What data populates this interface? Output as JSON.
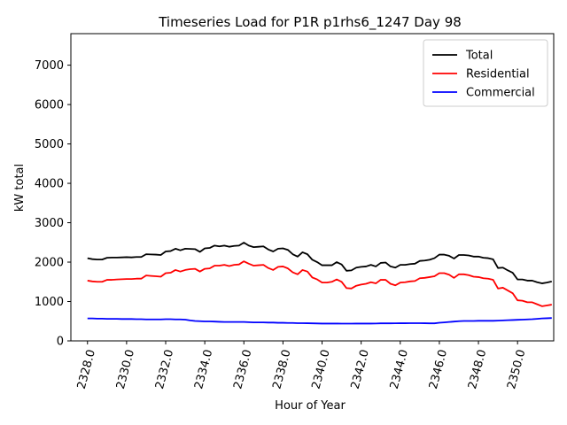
{
  "chart_data": {
    "type": "line",
    "title": "Timeseries Load for P1R p1rhs6_1247  Day 98",
    "xlabel": "Hour of Year",
    "ylabel": "kW total",
    "xlim": [
      2327.15,
      2351.85
    ],
    "ylim": [
      0,
      7800
    ],
    "x_ticks": [
      2328,
      2330,
      2332,
      2334,
      2336,
      2338,
      2340,
      2342,
      2344,
      2346,
      2348,
      2350
    ],
    "x_tick_labels": [
      "2328.0",
      "2330.0",
      "2332.0",
      "2334.0",
      "2336.0",
      "2338.0",
      "2340.0",
      "2342.0",
      "2344.0",
      "2346.0",
      "2348.0",
      "2350.0"
    ],
    "y_ticks": [
      0,
      1000,
      2000,
      3000,
      4000,
      5000,
      6000,
      7000
    ],
    "y_tick_labels": [
      "0",
      "1000",
      "2000",
      "3000",
      "4000",
      "5000",
      "6000",
      "7000"
    ],
    "legend_position": "top-right",
    "grid": false,
    "x_start": 2328,
    "x_step": 0.25,
    "series": [
      {
        "name": "Total",
        "color": "#000000",
        "values": [
          2100,
          2075,
          2065,
          2065,
          2110,
          2115,
          2115,
          2120,
          2125,
          2120,
          2130,
          2130,
          2200,
          2195,
          2190,
          2180,
          2270,
          2280,
          2340,
          2300,
          2340,
          2335,
          2330,
          2260,
          2350,
          2360,
          2420,
          2400,
          2420,
          2390,
          2410,
          2420,
          2495,
          2420,
          2380,
          2390,
          2400,
          2320,
          2270,
          2340,
          2350,
          2310,
          2200,
          2140,
          2250,
          2200,
          2060,
          2000,
          1920,
          1920,
          1920,
          2000,
          1940,
          1780,
          1790,
          1860,
          1880,
          1890,
          1930,
          1890,
          1980,
          1990,
          1890,
          1860,
          1930,
          1930,
          1950,
          1960,
          2030,
          2040,
          2060,
          2100,
          2190,
          2190,
          2160,
          2090,
          2180,
          2180,
          2170,
          2140,
          2140,
          2110,
          2100,
          2070,
          1850,
          1860,
          1790,
          1730,
          1560,
          1560,
          1530,
          1530,
          1490,
          1460,
          1480,
          1510
        ]
      },
      {
        "name": "Residential",
        "color": "#ff0000",
        "values": [
          1530,
          1510,
          1500,
          1500,
          1550,
          1550,
          1560,
          1565,
          1570,
          1570,
          1580,
          1580,
          1660,
          1650,
          1640,
          1630,
          1720,
          1730,
          1800,
          1760,
          1800,
          1820,
          1830,
          1760,
          1830,
          1840,
          1910,
          1910,
          1930,
          1900,
          1930,
          1940,
          2020,
          1960,
          1910,
          1920,
          1930,
          1850,
          1800,
          1880,
          1890,
          1840,
          1740,
          1690,
          1800,
          1760,
          1610,
          1560,
          1480,
          1480,
          1500,
          1560,
          1500,
          1340,
          1330,
          1400,
          1430,
          1450,
          1490,
          1460,
          1550,
          1550,
          1450,
          1410,
          1480,
          1490,
          1510,
          1520,
          1590,
          1600,
          1620,
          1640,
          1720,
          1720,
          1680,
          1600,
          1690,
          1690,
          1670,
          1630,
          1620,
          1590,
          1580,
          1550,
          1330,
          1350,
          1280,
          1210,
          1030,
          1020,
          980,
          980,
          930,
          880,
          900,
          920
        ]
      },
      {
        "name": "Commercial",
        "color": "#0000ff",
        "values": [
          570,
          570,
          565,
          565,
          560,
          560,
          560,
          555,
          555,
          555,
          550,
          550,
          545,
          545,
          545,
          545,
          550,
          550,
          545,
          545,
          540,
          520,
          505,
          500,
          495,
          495,
          490,
          485,
          480,
          480,
          480,
          480,
          480,
          475,
          470,
          470,
          470,
          465,
          465,
          460,
          460,
          455,
          455,
          450,
          450,
          448,
          445,
          443,
          440,
          440,
          440,
          440,
          438,
          438,
          438,
          440,
          440,
          440,
          440,
          442,
          445,
          445,
          445,
          447,
          448,
          448,
          450,
          450,
          450,
          448,
          445,
          445,
          460,
          470,
          480,
          490,
          500,
          505,
          505,
          505,
          510,
          510,
          510,
          510,
          515,
          520,
          525,
          530,
          535,
          540,
          545,
          550,
          560,
          570,
          575,
          580
        ]
      }
    ]
  }
}
